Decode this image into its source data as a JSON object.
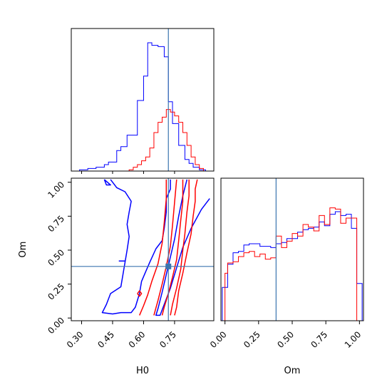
{
  "chart_data": [
    {
      "type": "histogram",
      "panel": "H0 marginal",
      "xlim": [
        0.25,
        0.94
      ],
      "truth_x": 0.72,
      "series": [
        {
          "color": "#0000ff",
          "bins_x": [
            0.25,
            0.29,
            0.33,
            0.37,
            0.41,
            0.43,
            0.47,
            0.49,
            0.52,
            0.57,
            0.6,
            0.62,
            0.64,
            0.67,
            0.7,
            0.72,
            0.74,
            0.77,
            0.8,
            0.82,
            0.84,
            0.87,
            0.9
          ],
          "counts": [
            0.0,
            0.01,
            0.02,
            0.03,
            0.05,
            0.07,
            0.16,
            0.19,
            0.28,
            0.55,
            0.74,
            1.0,
            0.98,
            0.97,
            0.89,
            0.54,
            0.37,
            0.2,
            0.09,
            0.06,
            0.03,
            0.01
          ]
        },
        {
          "color": "#ff0000",
          "bins_x": [
            0.53,
            0.55,
            0.57,
            0.59,
            0.61,
            0.63,
            0.65,
            0.67,
            0.69,
            0.71,
            0.73,
            0.75,
            0.77,
            0.79,
            0.81,
            0.83,
            0.85,
            0.87,
            0.89
          ],
          "counts": [
            0.01,
            0.03,
            0.05,
            0.08,
            0.11,
            0.18,
            0.3,
            0.38,
            0.42,
            0.48,
            0.46,
            0.43,
            0.38,
            0.3,
            0.2,
            0.11,
            0.05,
            0.02
          ]
        }
      ]
    },
    {
      "type": "contour",
      "panel": "H0 vs Om",
      "xlabel": "H0",
      "ylabel": "Om",
      "xlim": [
        0.25,
        0.94
      ],
      "ylim": [
        -0.02,
        1.03
      ],
      "xticks": [
        "0.30",
        "0.45",
        "0.60",
        "0.75"
      ],
      "yticks": [
        "0.00",
        "0.25",
        "0.50",
        "0.75",
        "1.00"
      ],
      "truth": {
        "H0": 0.72,
        "Om": 0.38
      },
      "series": [
        {
          "color": "#0000ff",
          "contours": [
            [
              [
                0.44,
                1.02
              ],
              [
                0.47,
                0.96
              ],
              [
                0.51,
                0.93
              ],
              [
                0.54,
                0.86
              ],
              [
                0.53,
                0.78
              ],
              [
                0.52,
                0.69
              ],
              [
                0.53,
                0.6
              ],
              [
                0.52,
                0.5
              ],
              [
                0.51,
                0.41
              ],
              [
                0.5,
                0.32
              ],
              [
                0.49,
                0.23
              ],
              [
                0.44,
                0.18
              ],
              [
                0.42,
                0.1
              ],
              [
                0.4,
                0.04
              ],
              [
                0.45,
                0.03
              ],
              [
                0.49,
                0.04
              ],
              [
                0.54,
                0.04
              ],
              [
                0.56,
                0.08
              ],
              [
                0.58,
                0.18
              ],
              [
                0.59,
                0.27
              ],
              [
                0.61,
                0.34
              ],
              [
                0.63,
                0.41
              ],
              [
                0.66,
                0.51
              ],
              [
                0.69,
                0.57
              ],
              [
                0.7,
                0.66
              ],
              [
                0.71,
                0.78
              ],
              [
                0.71,
                0.88
              ],
              [
                0.73,
                0.95
              ],
              [
                0.73,
                1.02
              ]
            ],
            [
              [
                0.81,
                1.02
              ],
              [
                0.79,
                0.9
              ],
              [
                0.77,
                0.75
              ],
              [
                0.75,
                0.58
              ],
              [
                0.73,
                0.45
              ],
              [
                0.71,
                0.32
              ],
              [
                0.69,
                0.19
              ],
              [
                0.67,
                0.07
              ],
              [
                0.66,
                0.02
              ],
              [
                0.68,
                0.02
              ],
              [
                0.7,
                0.1
              ],
              [
                0.73,
                0.22
              ],
              [
                0.76,
                0.37
              ],
              [
                0.79,
                0.52
              ],
              [
                0.83,
                0.66
              ],
              [
                0.88,
                0.8
              ],
              [
                0.92,
                0.88
              ]
            ],
            [
              [
                0.41,
                1.02
              ],
              [
                0.44,
                0.98
              ],
              [
                0.42,
                0.98
              ],
              [
                0.41,
                1.02
              ]
            ],
            [
              [
                0.48,
                0.42
              ],
              [
                0.51,
                0.42
              ]
            ]
          ]
        },
        {
          "color": "#ff0000",
          "contours": [
            [
              [
                0.71,
                1.02
              ],
              [
                0.71,
                0.88
              ],
              [
                0.7,
                0.7
              ],
              [
                0.69,
                0.55
              ],
              [
                0.67,
                0.4
              ],
              [
                0.64,
                0.27
              ],
              [
                0.62,
                0.17
              ],
              [
                0.6,
                0.09
              ],
              [
                0.58,
                0.02
              ]
            ],
            [
              [
                0.76,
                1.02
              ],
              [
                0.75,
                0.85
              ],
              [
                0.74,
                0.68
              ],
              [
                0.73,
                0.53
              ],
              [
                0.71,
                0.38
              ],
              [
                0.69,
                0.25
              ],
              [
                0.67,
                0.13
              ],
              [
                0.65,
                0.02
              ]
            ],
            [
              [
                0.79,
                1.02
              ],
              [
                0.79,
                0.86
              ],
              [
                0.78,
                0.72
              ],
              [
                0.77,
                0.57
              ],
              [
                0.76,
                0.43
              ],
              [
                0.74,
                0.3
              ],
              [
                0.72,
                0.18
              ],
              [
                0.7,
                0.08
              ],
              [
                0.69,
                0.02
              ]
            ],
            [
              [
                0.82,
                1.02
              ],
              [
                0.82,
                0.9
              ],
              [
                0.81,
                0.78
              ],
              [
                0.8,
                0.62
              ],
              [
                0.79,
                0.5
              ],
              [
                0.78,
                0.36
              ],
              [
                0.76,
                0.22
              ],
              [
                0.74,
                0.1
              ],
              [
                0.73,
                0.02
              ]
            ],
            [
              [
                0.86,
                1.02
              ],
              [
                0.85,
                0.95
              ],
              [
                0.85,
                0.86
              ],
              [
                0.84,
                0.75
              ],
              [
                0.83,
                0.62
              ],
              [
                0.81,
                0.48
              ],
              [
                0.79,
                0.33
              ],
              [
                0.77,
                0.2
              ],
              [
                0.76,
                0.08
              ],
              [
                0.75,
                0.02
              ]
            ],
            [
              [
                0.57,
                0.18
              ],
              [
                0.58,
                0.2
              ],
              [
                0.59,
                0.18
              ],
              [
                0.58,
                0.16
              ],
              [
                0.57,
                0.18
              ]
            ]
          ]
        }
      ]
    },
    {
      "type": "histogram",
      "panel": "Om marginal",
      "xlabel": "Om",
      "xlim": [
        -0.03,
        1.03
      ],
      "xticks": [
        "0.00",
        "0.25",
        "0.50",
        "0.75",
        "1.00"
      ],
      "truth_x": 0.38,
      "series": [
        {
          "color": "#0000ff",
          "bins_x": [
            -0.02,
            0.02,
            0.06,
            0.1,
            0.14,
            0.18,
            0.22,
            0.26,
            0.3,
            0.34,
            0.38,
            0.42,
            0.46,
            0.5,
            0.54,
            0.58,
            0.62,
            0.66,
            0.7,
            0.74,
            0.78,
            0.82,
            0.86,
            0.9,
            0.94,
            0.98,
            1.02
          ],
          "counts": [
            0.26,
            0.44,
            0.53,
            0.54,
            0.59,
            0.6,
            0.6,
            0.58,
            0.58,
            0.57,
            0.6,
            0.61,
            0.64,
            0.64,
            0.69,
            0.71,
            0.72,
            0.73,
            0.77,
            0.74,
            0.83,
            0.85,
            0.82,
            0.83,
            0.72,
            0.29
          ]
        },
        {
          "color": "#ff0000",
          "bins_x": [
            0.0,
            0.02,
            0.06,
            0.1,
            0.14,
            0.18,
            0.22,
            0.26,
            0.3,
            0.34,
            0.38,
            0.42,
            0.46,
            0.5,
            0.54,
            0.58,
            0.62,
            0.66,
            0.7,
            0.74,
            0.78,
            0.82,
            0.86,
            0.9,
            0.94,
            0.98,
            1.0
          ],
          "counts": [
            0.37,
            0.45,
            0.46,
            0.5,
            0.53,
            0.54,
            0.5,
            0.52,
            0.48,
            0.49,
            0.66,
            0.57,
            0.62,
            0.68,
            0.66,
            0.75,
            0.73,
            0.7,
            0.82,
            0.75,
            0.88,
            0.87,
            0.76,
            0.8,
            0.8
          ]
        }
      ]
    }
  ]
}
